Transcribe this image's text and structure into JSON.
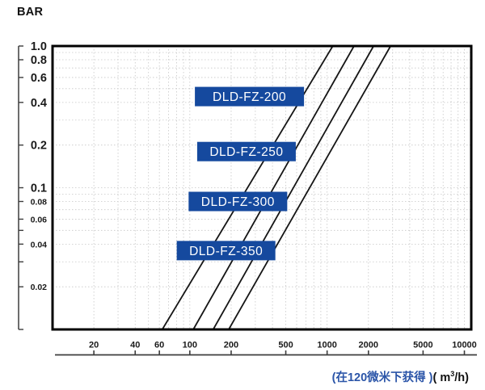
{
  "header": {
    "y_axis_unit": "BAR"
  },
  "footer": {
    "caption_cn": "(在120微米下获得 )",
    "unit_open": "( m",
    "unit_sup": "3",
    "unit_close": "/h)"
  },
  "colors": {
    "label_box_blue": "#15499E",
    "caption_blue": "#2B55A8",
    "series_line": "#151515",
    "plot_border": "#000000",
    "grid": "#c6c6c6",
    "ruler": "#3d3d3d",
    "tick_label": "#1a1a1a",
    "label_text": "#ffffff"
  },
  "chart_data": {
    "type": "line",
    "x_scale": "log",
    "y_scale": "log",
    "xlim": [
      10,
      11220
    ],
    "ylim": [
      0.01,
      1.0
    ],
    "ylabel": "BAR",
    "xlabel_cn": "(在120微米下获得 ) ( m3/h)",
    "grid": "dotted log minor grid, both axes",
    "legend_position": "none",
    "x_ticks": [
      {
        "value": 20,
        "label": "20"
      },
      {
        "value": 40,
        "label": "40"
      },
      {
        "value": 60,
        "label": "60"
      },
      {
        "value": 100,
        "label": "100"
      },
      {
        "value": 200,
        "label": "200"
      },
      {
        "value": 500,
        "label": "500"
      },
      {
        "value": 1000,
        "label": "1000"
      },
      {
        "value": 2000,
        "label": "2000"
      },
      {
        "value": 5000,
        "label": "5000"
      },
      {
        "value": 10000,
        "label": "10000"
      }
    ],
    "y_ticks": [
      {
        "value": 1.0,
        "label": "1.0",
        "size": "large"
      },
      {
        "value": 0.8,
        "label": "0.8",
        "size": "large"
      },
      {
        "value": 0.6,
        "label": "0.6",
        "size": "large"
      },
      {
        "value": 0.4,
        "label": "0.4",
        "size": "large"
      },
      {
        "value": 0.2,
        "label": "0.2",
        "size": "large"
      },
      {
        "value": 0.1,
        "label": "0.1",
        "size": "large"
      },
      {
        "value": 0.08,
        "label": "0.08",
        "size": "small"
      },
      {
        "value": 0.06,
        "label": "0.06",
        "size": "small"
      },
      {
        "value": 0.05,
        "label": "",
        "size": "small"
      },
      {
        "value": 0.04,
        "label": "0.04",
        "size": "small"
      },
      {
        "value": 0.03,
        "label": "",
        "size": "small"
      },
      {
        "value": 0.02,
        "label": "0.02",
        "size": "small"
      },
      {
        "value": 0.01,
        "label": "",
        "size": "small"
      }
    ],
    "series": [
      {
        "name": "DLD-FZ-200",
        "points": [
          {
            "flow": 63,
            "pressure": 0.01
          },
          {
            "flow": 1100,
            "pressure": 1.0
          }
        ],
        "label_pressure": 0.44
      },
      {
        "name": "DLD-FZ-250",
        "points": [
          {
            "flow": 106,
            "pressure": 0.01
          },
          {
            "flow": 1570,
            "pressure": 1.0
          }
        ],
        "label_pressure": 0.18
      },
      {
        "name": "DLD-FZ-300",
        "points": [
          {
            "flow": 148,
            "pressure": 0.01
          },
          {
            "flow": 2180,
            "pressure": 1.0
          }
        ],
        "label_pressure": 0.08
      },
      {
        "name": "DLD-FZ-350",
        "points": [
          {
            "flow": 192,
            "pressure": 0.01
          },
          {
            "flow": 2900,
            "pressure": 1.0
          }
        ],
        "label_pressure": 0.036
      }
    ]
  }
}
